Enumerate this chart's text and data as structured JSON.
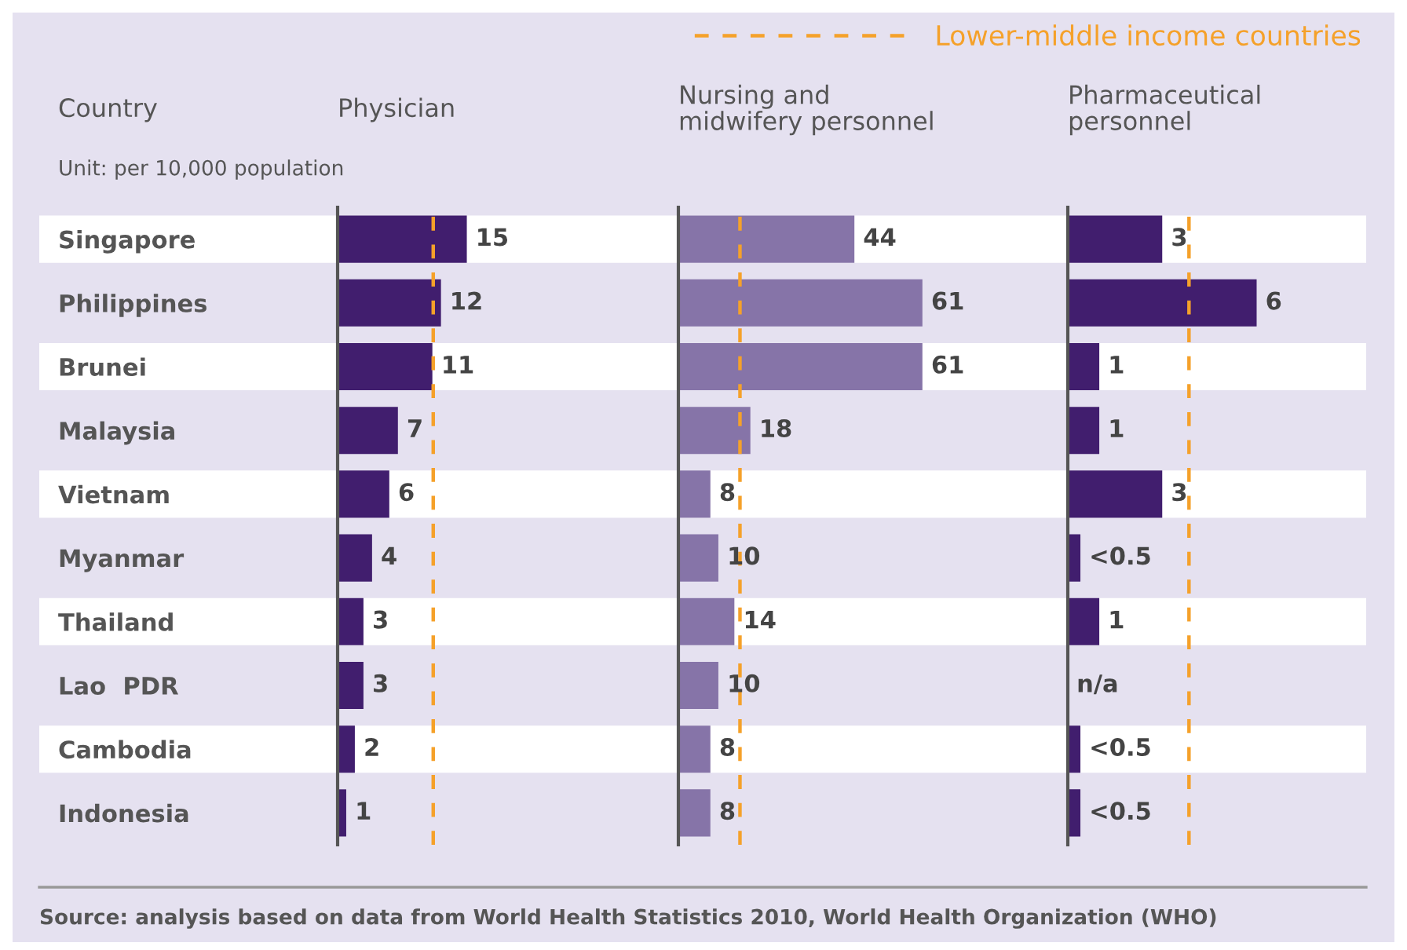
{
  "chart_data": [
    {
      "type": "bar",
      "orientation": "horizontal",
      "title": "Physician",
      "ylabel": "Country",
      "categories": [
        "Singapore",
        "Philippines",
        "Brunei",
        "Malaysia",
        "Vietnam",
        "Myanmar",
        "Thailand",
        "Lao  PDR",
        "Cambodia",
        "Indonesia"
      ],
      "values": [
        15,
        12,
        11,
        7,
        6,
        4,
        3,
        3,
        2,
        1
      ],
      "color": "#411e6e",
      "data_labels": true,
      "tick_labels": "y",
      "legend": "top right",
      "ref_lines": [
        {
          "axis": "x",
          "value": 11.1,
          "label": "Lower-middle income countries",
          "color": "#f5a12a",
          "line_style": "dashed"
        }
      ],
      "annotations": [
        "Unit: per 10,000 population",
        "Source: analysis based on data from World Health Statistics 2010, World Health Organization (WHO)"
      ]
    },
    {
      "type": "bar",
      "orientation": "horizontal",
      "title": "Nursing and\nmidwifery personnel",
      "values": [
        44,
        61,
        61,
        18,
        8,
        10,
        14,
        10,
        8,
        8
      ],
      "color": "#8674a8",
      "data_labels": true,
      "tick_labels": false,
      "ref_lines": [
        {
          "axis": "x",
          "value": 15.4,
          "color": "#f5a12a",
          "line_style": "dashed"
        }
      ]
    },
    {
      "type": "bar",
      "orientation": "horizontal",
      "title": "Pharmaceutical\npersonnel",
      "values": [
        3,
        6,
        1,
        1,
        3,
        0.4,
        1,
        null,
        0.4,
        0.4
      ],
      "color": "#411e6e",
      "value_labels": [
        "3",
        "6",
        "1",
        "1",
        "3",
        "<0.5",
        "1",
        "n/a",
        "<0.5",
        "<0.5"
      ],
      "tick_labels": false,
      "ref_lines": [
        {
          "axis": "x",
          "value": 3.85,
          "color": "#f5a12a",
          "line_style": "dashed"
        }
      ]
    }
  ]
}
